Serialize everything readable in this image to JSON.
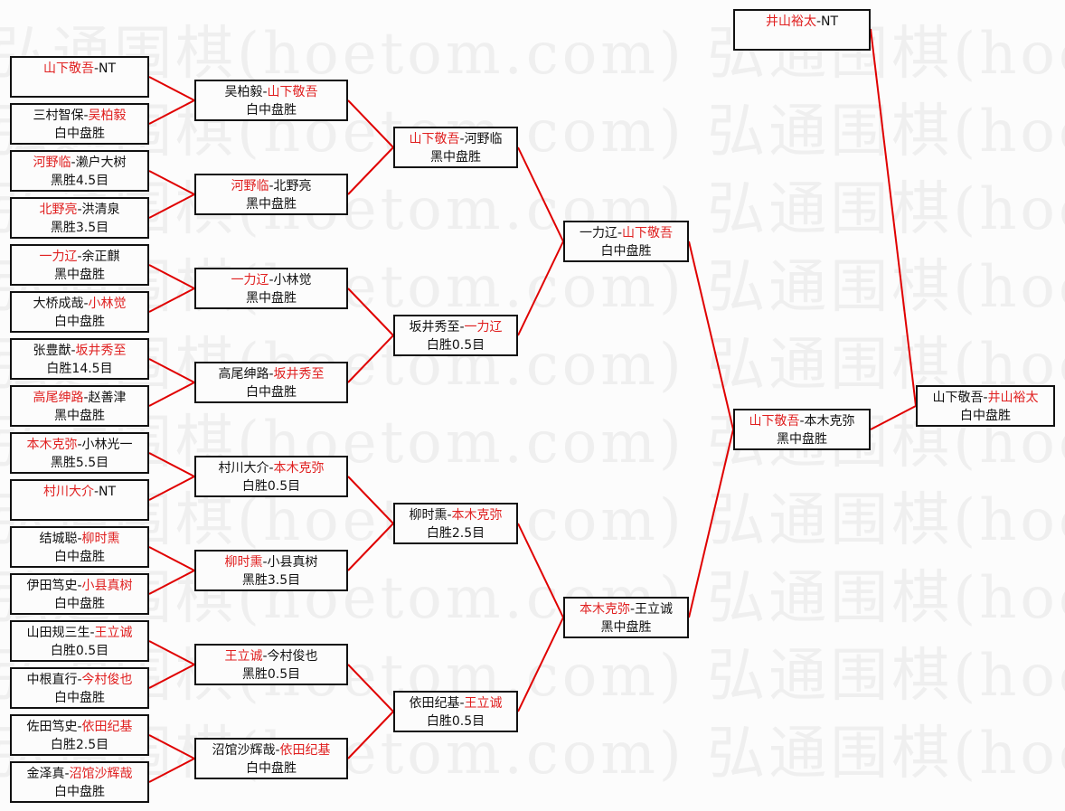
{
  "watermark": "弘通围棋(hoetom.com) 弘通围棋(hoetom.com)",
  "colors": {
    "winner": "#e02020",
    "line": "#e00000",
    "border": "#111111"
  },
  "rounds": [
    [
      {
        "p1": "山下敬吾",
        "p2": "NT",
        "winner": 1,
        "result": ""
      },
      {
        "p1": "三村智保",
        "p2": "吴柏毅",
        "winner": 2,
        "result": "白中盘胜"
      },
      {
        "p1": "河野临",
        "p2": "濑户大树",
        "winner": 1,
        "result": "黑胜4.5目"
      },
      {
        "p1": "北野亮",
        "p2": "洪清泉",
        "winner": 1,
        "result": "黑胜3.5目"
      },
      {
        "p1": "一力辽",
        "p2": "余正麒",
        "winner": 1,
        "result": "黑中盘胜"
      },
      {
        "p1": "大桥成哉",
        "p2": "小林觉",
        "winner": 2,
        "result": "白中盘胜"
      },
      {
        "p1": "张豊猷",
        "p2": "坂井秀至",
        "winner": 2,
        "result": "白胜14.5目"
      },
      {
        "p1": "高尾绅路",
        "p2": "赵善津",
        "winner": 1,
        "result": "黑中盘胜"
      },
      {
        "p1": "本木克弥",
        "p2": "小林光一",
        "winner": 1,
        "result": "黑胜5.5目"
      },
      {
        "p1": "村川大介",
        "p2": "NT",
        "winner": 1,
        "result": ""
      },
      {
        "p1": "结城聪",
        "p2": "柳时熏",
        "winner": 2,
        "result": "白中盘胜"
      },
      {
        "p1": "伊田笃史",
        "p2": "小县真树",
        "winner": 2,
        "result": "白中盘胜"
      },
      {
        "p1": "山田规三生",
        "p2": "王立诚",
        "winner": 2,
        "result": "白胜0.5目"
      },
      {
        "p1": "中根直行",
        "p2": "今村俊也",
        "winner": 2,
        "result": "白中盘胜"
      },
      {
        "p1": "佐田笃史",
        "p2": "依田纪基",
        "winner": 2,
        "result": "白胜2.5目"
      },
      {
        "p1": "金泽真",
        "p2": "沼馆沙辉哉",
        "winner": 2,
        "result": "白中盘胜"
      }
    ],
    [
      {
        "p1": "吴柏毅",
        "p2": "山下敬吾",
        "winner": 2,
        "result": "白中盘胜"
      },
      {
        "p1": "河野临",
        "p2": "北野亮",
        "winner": 1,
        "result": "黑中盘胜"
      },
      {
        "p1": "一力辽",
        "p2": "小林觉",
        "winner": 1,
        "result": "黑中盘胜"
      },
      {
        "p1": "高尾绅路",
        "p2": "坂井秀至",
        "winner": 2,
        "result": "白中盘胜"
      },
      {
        "p1": "村川大介",
        "p2": "本木克弥",
        "winner": 2,
        "result": "白胜0.5目"
      },
      {
        "p1": "柳时熏",
        "p2": "小县真树",
        "winner": 1,
        "result": "黑胜3.5目"
      },
      {
        "p1": "王立诚",
        "p2": "今村俊也",
        "winner": 1,
        "result": "黑胜0.5目"
      },
      {
        "p1": "沼馆沙辉哉",
        "p2": "依田纪基",
        "winner": 2,
        "result": "白中盘胜"
      }
    ],
    [
      {
        "p1": "山下敬吾",
        "p2": "河野临",
        "winner": 1,
        "result": "黑中盘胜"
      },
      {
        "p1": "坂井秀至",
        "p2": "一力辽",
        "winner": 2,
        "result": "白胜0.5目"
      },
      {
        "p1": "柳时熏",
        "p2": "本木克弥",
        "winner": 2,
        "result": "白胜2.5目"
      },
      {
        "p1": "依田纪基",
        "p2": "王立诚",
        "winner": 2,
        "result": "白胜0.5目"
      }
    ],
    [
      {
        "p1": "一力辽",
        "p2": "山下敬吾",
        "winner": 2,
        "result": "白中盘胜"
      },
      {
        "p1": "本木克弥",
        "p2": "王立诚",
        "winner": 1,
        "result": "黑中盘胜"
      }
    ],
    [
      {
        "p1": "山下敬吾",
        "p2": "本木克弥",
        "winner": 1,
        "result": "黑中盘胜"
      }
    ]
  ],
  "seed": {
    "p1": "井山裕太",
    "p2": "NT",
    "winner": 1,
    "result": ""
  },
  "final": {
    "p1": "山下敬吾",
    "p2": "井山裕太",
    "winner": 2,
    "result": "白中盘胜"
  }
}
